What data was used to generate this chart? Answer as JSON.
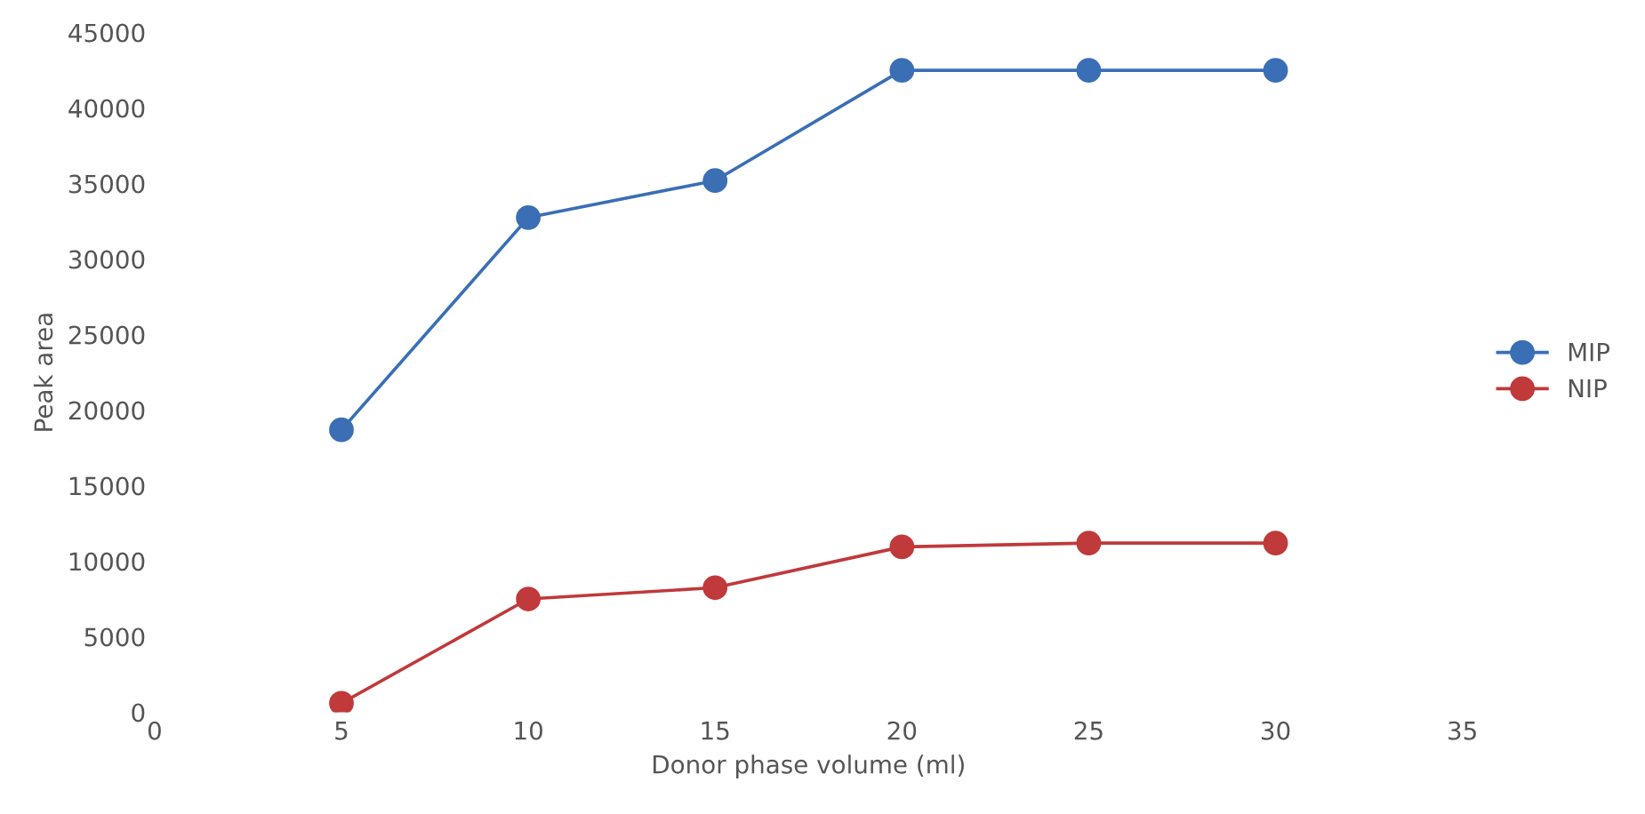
{
  "chart_data": {
    "type": "line",
    "xlabel": "Donor phase volume (ml)",
    "ylabel": "Peak area",
    "x": [
      5,
      10,
      15,
      20,
      25,
      30
    ],
    "series": [
      {
        "name": "MIP",
        "color": "#3a6fb5",
        "values": [
          18700,
          32750,
          35200,
          42500,
          42500,
          42500
        ]
      },
      {
        "name": "NIP",
        "color": "#c0393b",
        "values": [
          600,
          7500,
          8250,
          10950,
          11200,
          11200
        ]
      }
    ],
    "xlim": [
      0,
      35
    ],
    "xticks": [
      0,
      5,
      10,
      15,
      20,
      25,
      30,
      35
    ],
    "ylim": [
      0,
      45000
    ],
    "yticks": [
      0,
      5000,
      10000,
      15000,
      20000,
      25000,
      30000,
      35000,
      40000,
      45000
    ],
    "grid": false,
    "legend": "right",
    "marker": "circle",
    "line_style": "solid"
  }
}
